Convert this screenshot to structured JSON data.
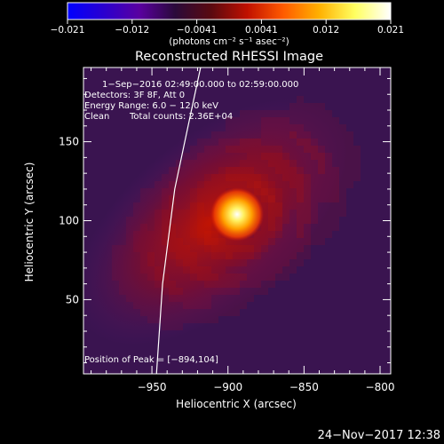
{
  "colorbar": {
    "ticks": [
      "−0.021",
      "−0.012",
      "−0.0041",
      "0.0041",
      "0.012",
      "0.021"
    ],
    "unit_label": "(photons cm⁻² s⁻¹ asec⁻²)",
    "colors": [
      "#0000ff",
      "#2a00d0",
      "#5a00a0",
      "#2a0a3a",
      "#5a0a10",
      "#c01000",
      "#ff5a00",
      "#ffb000",
      "#ffff60",
      "#ffffff"
    ]
  },
  "header": {
    "title": "Reconstructed RHESSI Image"
  },
  "annotations": {
    "time_range": "1−Sep−2016 02:49:00.000 to 02:59:00.000",
    "detectors": "Detectors: 3F 8F, Att 0",
    "energy_range": "Energy Range: 6.0 − 12.0 keV",
    "clean_label": "Clean",
    "total_counts": "Total counts: 2.36E+04",
    "peak_position": "Position of Peak = [−894,104]"
  },
  "footer": {
    "timestamp": "24−Nov−2017 12:38"
  },
  "chart_data": {
    "type": "heatmap",
    "title": "Reconstructed RHESSI Image",
    "xlabel": "Heliocentric X (arcsec)",
    "ylabel": "Heliocentric Y (arcsec)",
    "xlim": [
      -995,
      -793
    ],
    "ylim": [
      3,
      197
    ],
    "x_ticks": [
      -950,
      -900,
      -850,
      -800
    ],
    "x_tick_labels": [
      "−950",
      "−900",
      "−850",
      "−800"
    ],
    "y_ticks": [
      50,
      100,
      150
    ],
    "y_tick_labels": [
      "50",
      "100",
      "150"
    ],
    "peak": {
      "x": -894,
      "y": 104
    },
    "colorbar_range": [
      -0.021,
      0.021
    ],
    "limb_curve": [
      [
        -947,
        3
      ],
      [
        -943,
        60
      ],
      [
        -935,
        120
      ],
      [
        -924,
        170
      ],
      [
        -918,
        197
      ]
    ],
    "colors": {
      "limb": "#ffffff",
      "background": "#000000"
    }
  }
}
